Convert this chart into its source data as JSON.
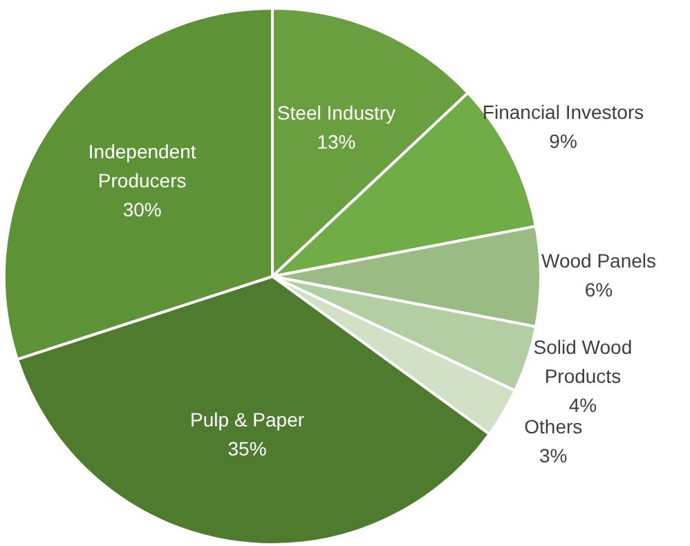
{
  "chart_data": {
    "type": "pie",
    "categories": [
      "Steel Industry",
      "Financial Investors",
      "Wood Panels",
      "Solid Wood Products",
      "Others",
      "Pulp & Paper",
      "Independent Producers"
    ],
    "values": [
      13,
      9,
      6,
      4,
      3,
      35,
      30
    ],
    "value_labels": [
      "13%",
      "9%",
      "6%",
      "4%",
      "3%",
      "35%",
      "30%"
    ],
    "colors": [
      "#6a9f40",
      "#70ad47",
      "#9bbb84",
      "#b4cea3",
      "#d2e1c6",
      "#4e7b2e",
      "#5e9237"
    ],
    "legend": false
  }
}
